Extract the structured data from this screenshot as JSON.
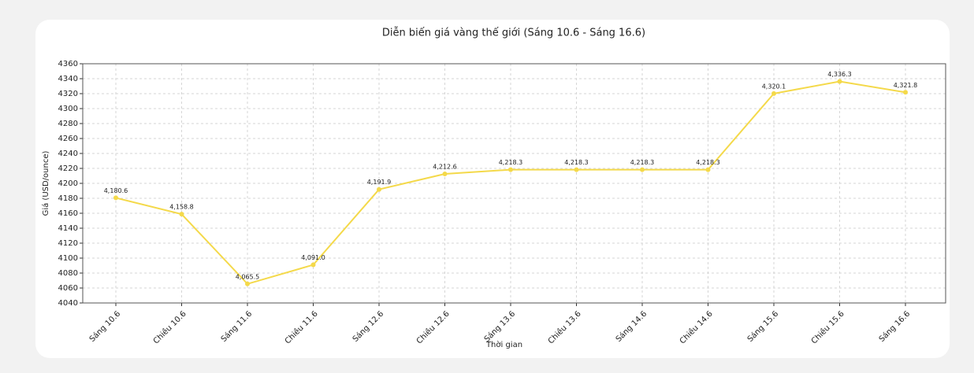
{
  "chart_data": {
    "type": "line",
    "title": "Diễn biến giá vàng thế giới (Sáng 10.6 - Sáng 16.6)",
    "x_label": "Thời gian",
    "y_label": "Giá (USD/ounce)",
    "categories": [
      "Sáng 10.6",
      "Chiều 10.6",
      "Sáng 11.6",
      "Chiều 11.6",
      "Sáng 12.6",
      "Chiều 12.6",
      "Sáng 13.6",
      "Chiều 13.6",
      "Sáng 14.6",
      "Chiều 14.6",
      "Sáng 15.6",
      "Chiều 15.6",
      "Sáng 16.6"
    ],
    "series": [
      {
        "name": "Giá vàng",
        "color": "#f4d94a",
        "values": [
          4180.6,
          4158.8,
          4065.5,
          4091.0,
          4191.9,
          4212.6,
          4218.3,
          4218.3,
          4218.3,
          4218.3,
          4320.1,
          4336.3,
          4321.8
        ],
        "value_labels": [
          "4,180.6",
          "4,158.8",
          "4,065.5",
          "4,091.0",
          "4,191.9",
          "4,212.6",
          "4,218.3",
          "4,218.3",
          "4,218.3",
          "4,218.3",
          "4,320.1",
          "4,336.3",
          "4,321.8"
        ]
      }
    ],
    "ylim": [
      4040,
      4360
    ],
    "yticks": [
      4040,
      4060,
      4080,
      4100,
      4120,
      4140,
      4160,
      4180,
      4200,
      4220,
      4240,
      4260,
      4280,
      4300,
      4320,
      4340,
      4360
    ],
    "grid": true
  }
}
